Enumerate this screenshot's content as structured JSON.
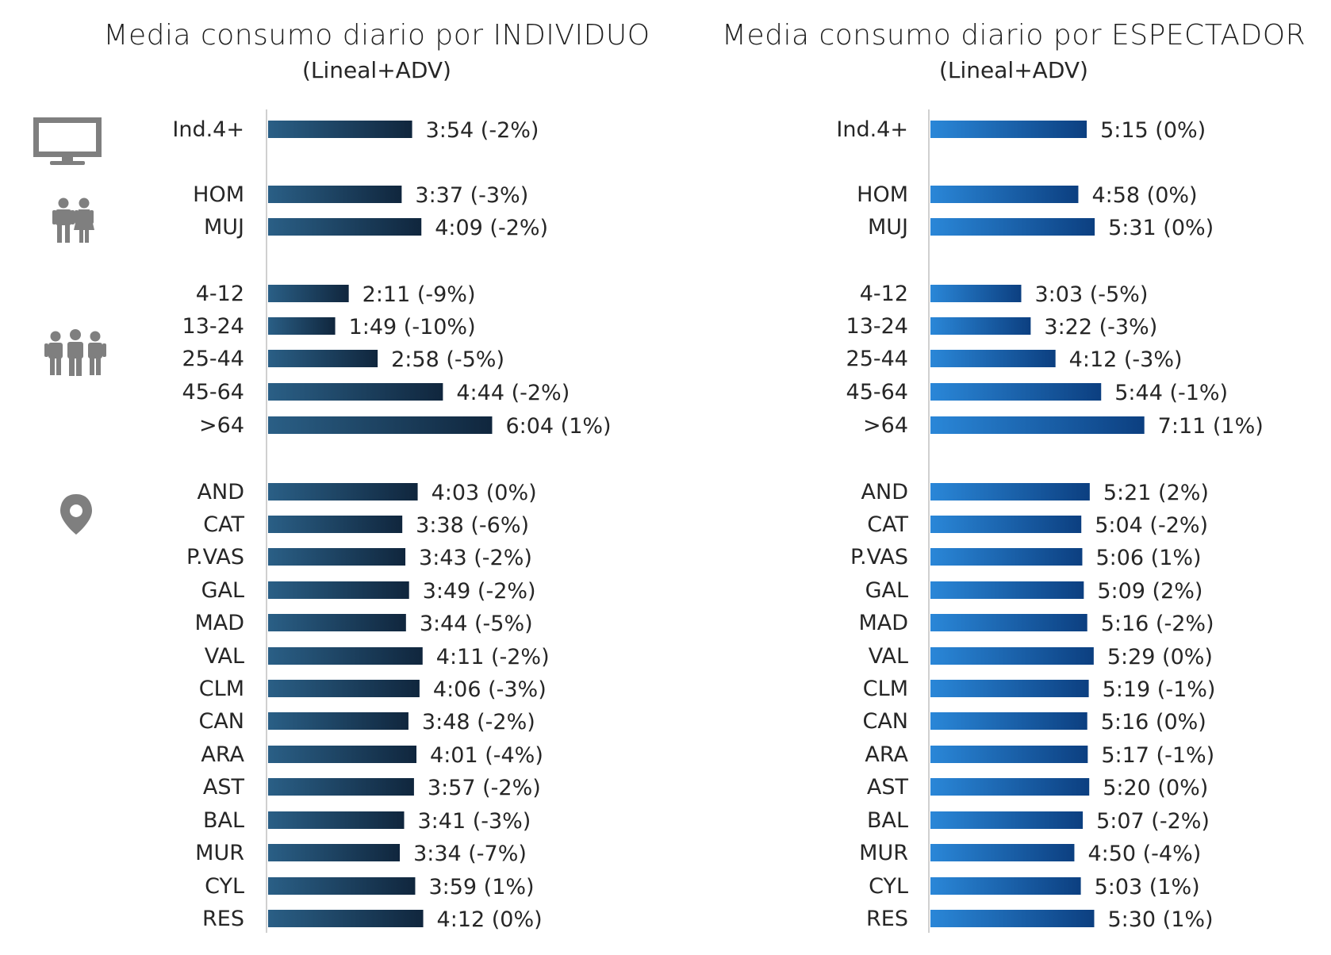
{
  "left_panel": {
    "title": "Media consumo diario por INDIVIDUO",
    "subtitle": "(Lineal+ADV)"
  },
  "right_panel": {
    "title": "Media consumo diario por ESPECTADOR",
    "subtitle": "(Lineal+ADV)"
  },
  "icons": [
    "tv-icon",
    "man-woman-icon",
    "group-people-icon",
    "location-pin-icon"
  ],
  "colors": {
    "left_bar_start": "#2a5f86",
    "left_bar_end": "#10263d",
    "right_bar_start": "#2a87d8",
    "right_bar_end": "#0c3f80",
    "icon": "#7f7f7f",
    "axis": "#d0d0d0"
  },
  "chart_data": [
    {
      "type": "bar",
      "orientation": "horizontal",
      "title": "Media consumo diario por INDIVIDUO",
      "subtitle": "(Lineal+ADV)",
      "groups": [
        {
          "icon": "tv-icon",
          "categories": [
            "Ind.4+"
          ]
        },
        {
          "icon": "man-woman-icon",
          "categories": [
            "HOM",
            "MUJ"
          ]
        },
        {
          "icon": "group-people-icon",
          "categories": [
            "4-12",
            "13-24",
            "25-44",
            "45-64",
            ">64"
          ]
        },
        {
          "icon": "location-pin-icon",
          "categories": [
            "AND",
            "CAT",
            "P.VAS",
            "GAL",
            "MAD",
            "VAL",
            "CLM",
            "CAN",
            "ARA",
            "AST",
            "BAL",
            "MUR",
            "CYL",
            "RES"
          ]
        }
      ],
      "categories": [
        "Ind.4+",
        "HOM",
        "MUJ",
        "4-12",
        "13-24",
        "25-44",
        "45-64",
        ">64",
        "AND",
        "CAT",
        "P.VAS",
        "GAL",
        "MAD",
        "VAL",
        "CLM",
        "CAN",
        "ARA",
        "AST",
        "BAL",
        "MUR",
        "CYL",
        "RES"
      ],
      "values_minutes": [
        234,
        217,
        249,
        131,
        109,
        178,
        284,
        364,
        243,
        218,
        223,
        229,
        224,
        251,
        246,
        228,
        241,
        237,
        221,
        214,
        239,
        252
      ],
      "labels": [
        "3:54 (-2%)",
        "3:37 (-3%)",
        "4:09 (-2%)",
        "2:11 (-9%)",
        "1:49 (-10%)",
        "2:58 (-5%)",
        "4:44 (-2%)",
        "6:04 (1%)",
        "4:03 (0%)",
        "3:38 (-6%)",
        "3:43 (-2%)",
        "3:49 (-2%)",
        "3:44 (-5%)",
        "4:11 (-2%)",
        "4:06 (-3%)",
        "3:48 (-2%)",
        "4:01 (-4%)",
        "3:57 (-2%)",
        "3:41 (-3%)",
        "3:34 (-7%)",
        "3:59 (1%)",
        "4:12 (0%)"
      ]
    },
    {
      "type": "bar",
      "orientation": "horizontal",
      "title": "Media consumo diario por ESPECTADOR",
      "subtitle": "(Lineal+ADV)",
      "groups": [
        {
          "icon": "tv-icon",
          "categories": [
            "Ind.4+"
          ]
        },
        {
          "icon": "man-woman-icon",
          "categories": [
            "HOM",
            "MUJ"
          ]
        },
        {
          "icon": "group-people-icon",
          "categories": [
            "4-12",
            "13-24",
            "25-44",
            "45-64",
            ">64"
          ]
        },
        {
          "icon": "location-pin-icon",
          "categories": [
            "AND",
            "CAT",
            "P.VAS",
            "GAL",
            "MAD",
            "VAL",
            "CLM",
            "CAN",
            "ARA",
            "AST",
            "BAL",
            "MUR",
            "CYL",
            "RES"
          ]
        }
      ],
      "categories": [
        "Ind.4+",
        "HOM",
        "MUJ",
        "4-12",
        "13-24",
        "25-44",
        "45-64",
        ">64",
        "AND",
        "CAT",
        "P.VAS",
        "GAL",
        "MAD",
        "VAL",
        "CLM",
        "CAN",
        "ARA",
        "AST",
        "BAL",
        "MUR",
        "CYL",
        "RES"
      ],
      "values_minutes": [
        315,
        298,
        331,
        183,
        202,
        252,
        344,
        431,
        321,
        304,
        306,
        309,
        316,
        329,
        319,
        316,
        317,
        320,
        307,
        290,
        303,
        330
      ],
      "labels": [
        "5:15 (0%)",
        "4:58 (0%)",
        "5:31 (0%)",
        "3:03 (-5%)",
        "3:22 (-3%)",
        "4:12 (-3%)",
        "5:44 (-1%)",
        "7:11 (1%)",
        "5:21 (2%)",
        "5:04 (-2%)",
        "5:06 (1%)",
        "5:09 (2%)",
        "5:16 (-2%)",
        "5:29 (0%)",
        "5:19 (-1%)",
        "5:16 (0%)",
        "5:17 (-1%)",
        "5:20 (0%)",
        "5:07 (-2%)",
        "4:50 (-4%)",
        "5:03 (1%)",
        "5:30 (1%)"
      ]
    }
  ]
}
